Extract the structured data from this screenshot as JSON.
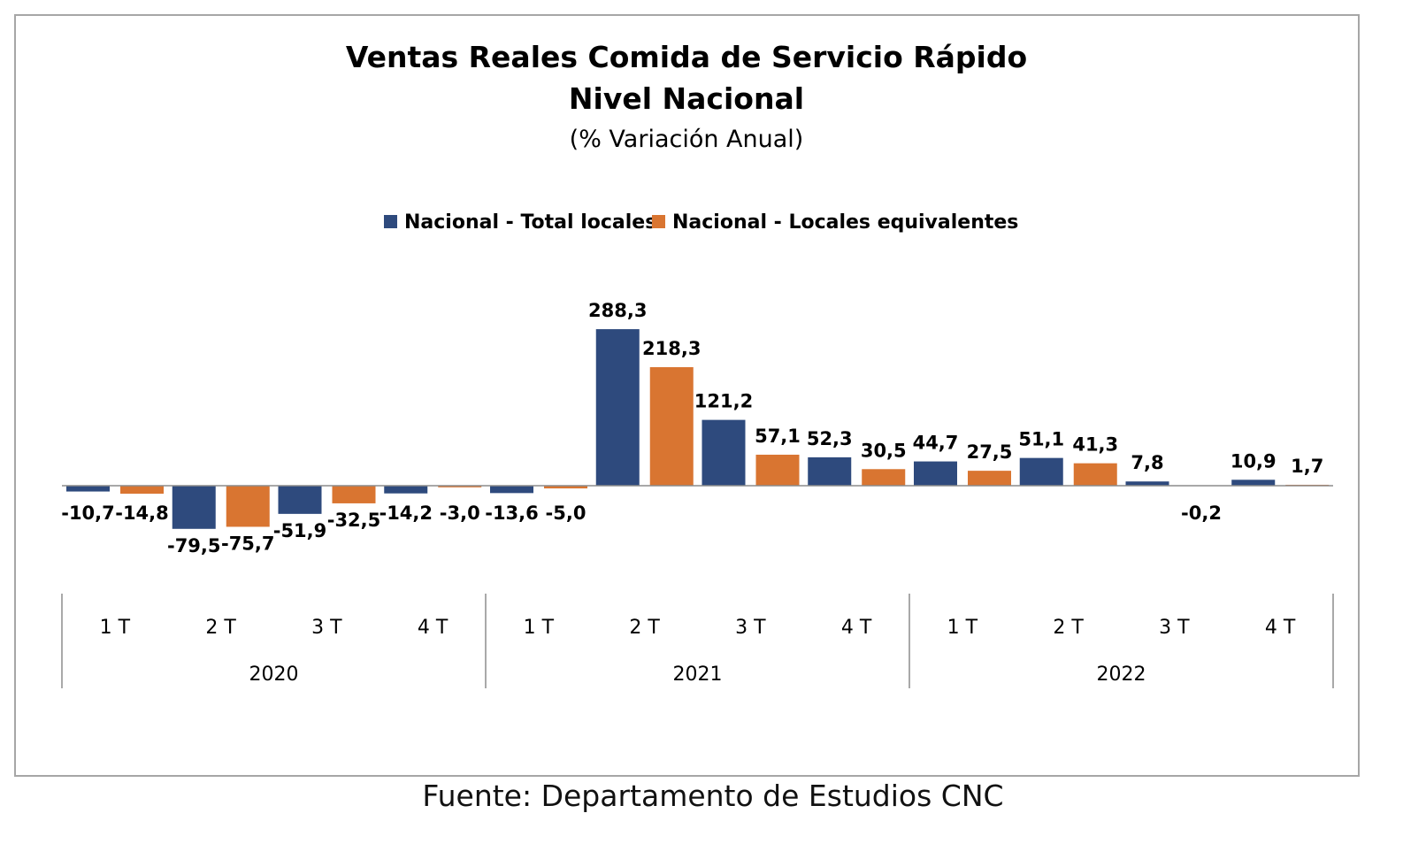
{
  "chart_data": {
    "type": "bar",
    "title": "Ventas Reales Comida de Servicio Rápido",
    "title_line2": "Nivel Nacional",
    "subtitle": "(% Variación Anual)",
    "legend_position": "top-center",
    "grid": false,
    "ylim": [
      -100,
      300
    ],
    "categories": [
      "1 T",
      "2 T",
      "3 T",
      "4 T",
      "1 T",
      "2 T",
      "3 T",
      "4 T",
      "1 T",
      "2 T",
      "3 T",
      "4 T"
    ],
    "groups": [
      {
        "label": "2020",
        "count": 4
      },
      {
        "label": "2021",
        "count": 4
      },
      {
        "label": "2022",
        "count": 4
      }
    ],
    "series": [
      {
        "name": "Nacional - Total locales",
        "color": "#2e4a7d",
        "values": [
          -10.7,
          -79.5,
          -51.9,
          -14.2,
          -13.6,
          288.3,
          121.2,
          52.3,
          44.7,
          51.1,
          7.8,
          10.9
        ],
        "labels": [
          "-10,7",
          "-79,5",
          "-51,9",
          "-14,2",
          "-13,6",
          "288,3",
          "121,2",
          "52,3",
          "44,7",
          "51,1",
          "7,8",
          "10,9"
        ]
      },
      {
        "name": "Nacional - Locales equivalentes",
        "color": "#d97531",
        "values": [
          -14.8,
          -75.7,
          -32.5,
          -3.0,
          -5.0,
          218.3,
          57.1,
          30.5,
          27.5,
          41.3,
          -0.2,
          1.7
        ],
        "labels": [
          "-14,8",
          "-75,7",
          "-32,5",
          "-3,0",
          "-5,0",
          "218,3",
          "57,1",
          "30,5",
          "27,5",
          "41,3",
          "-0,2",
          "1,7"
        ]
      }
    ]
  },
  "footer": {
    "source": "Fuente: Departamento de Estudios CNC"
  }
}
